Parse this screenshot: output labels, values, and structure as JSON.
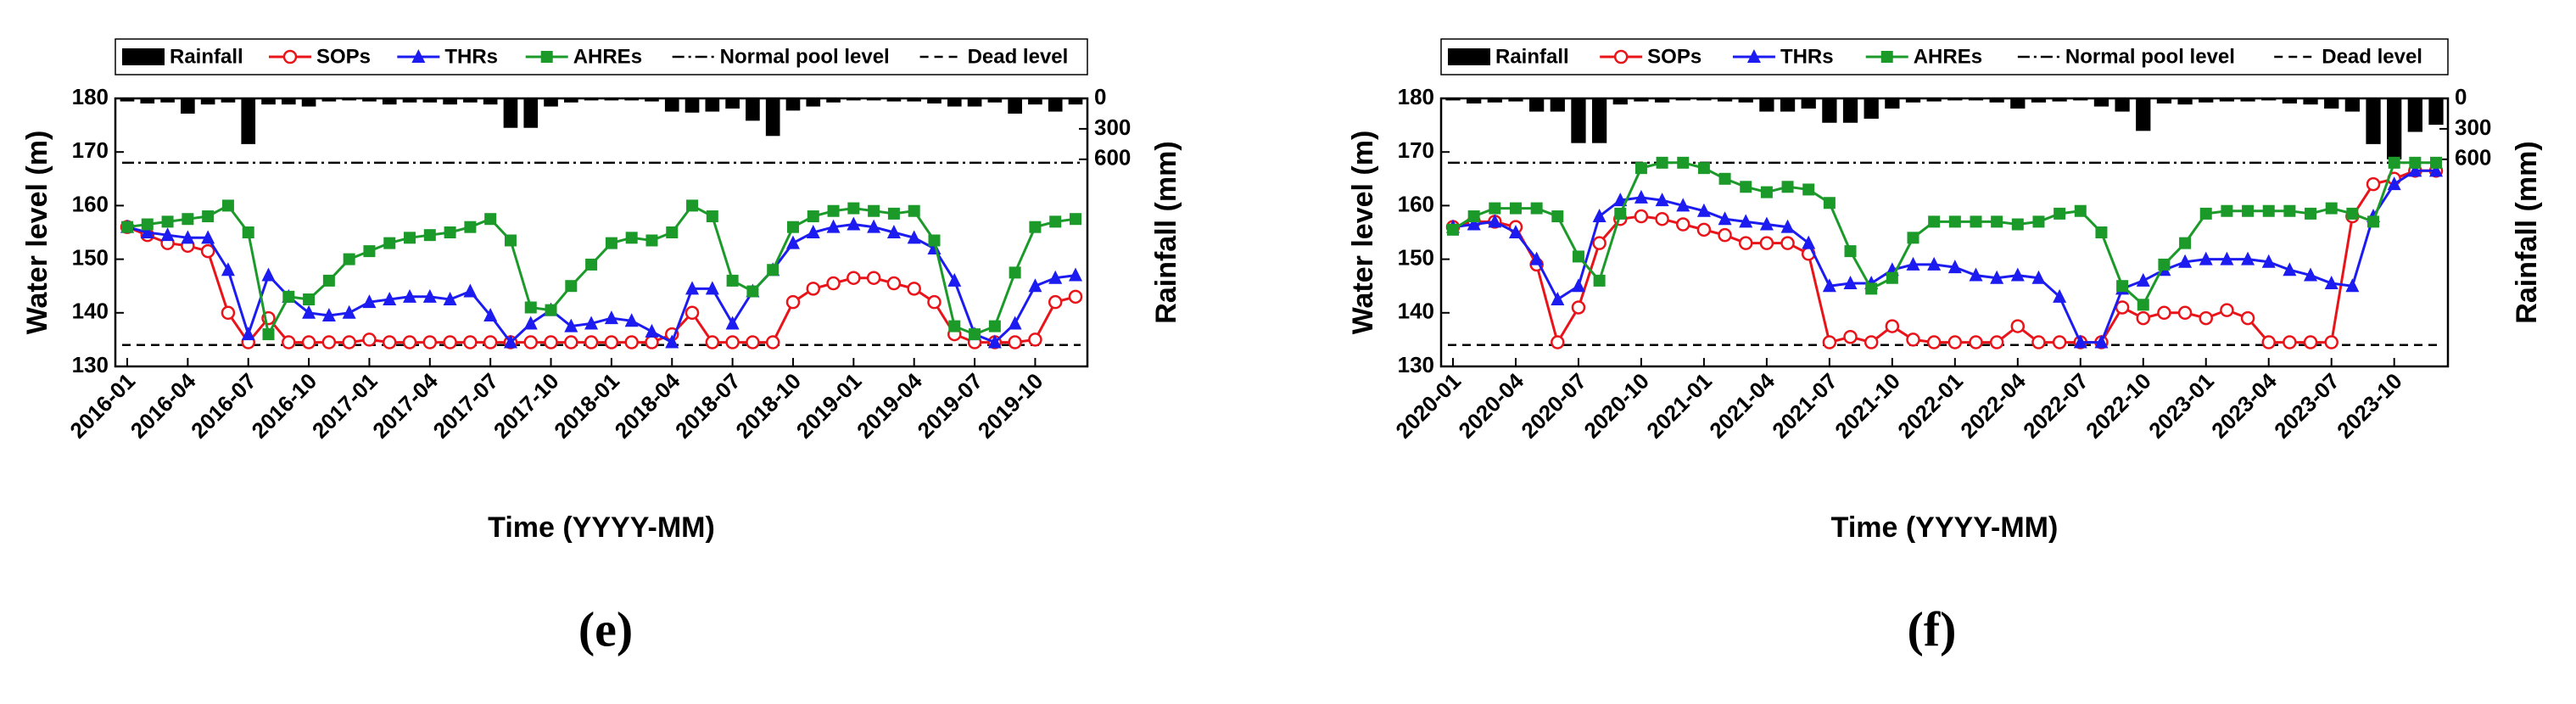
{
  "chart_data": [
    {
      "type": "line",
      "panel_label": "(e)",
      "xlabel": "Time (YYYY-MM)",
      "ylabel": "Water level (m)",
      "y2label": "Rainfall (mm)",
      "categories": [
        "2016-01",
        null,
        null,
        "2016-04",
        null,
        null,
        "2016-07",
        null,
        null,
        "2016-10",
        null,
        null,
        "2017-01",
        null,
        null,
        "2017-04",
        null,
        null,
        "2017-07",
        null,
        null,
        "2017-10",
        null,
        null,
        "2018-01",
        null,
        null,
        "2018-04",
        null,
        null,
        "2018-07",
        null,
        null,
        "2018-10",
        null,
        null,
        "2019-01",
        null,
        null,
        "2019-04",
        null,
        null,
        "2019-07",
        null,
        null,
        "2019-10",
        null,
        null
      ],
      "ylim": [
        130,
        180
      ],
      "yticks": [
        130,
        140,
        150,
        160,
        170,
        180
      ],
      "y2lim": [
        0,
        2640
      ],
      "y2ticks": [
        0,
        300,
        600
      ],
      "y2_inverted": true,
      "hlines": [
        {
          "name": "Normal pool level",
          "value": 168,
          "style": "dashdot"
        },
        {
          "name": "Dead level",
          "value": 134,
          "style": "dashed"
        }
      ],
      "series": [
        {
          "name": "Rainfall",
          "type": "bar",
          "axis": "y2",
          "color": "#000000",
          "values": [
            30,
            50,
            40,
            150,
            60,
            40,
            450,
            60,
            60,
            80,
            30,
            20,
            30,
            60,
            40,
            40,
            60,
            40,
            60,
            290,
            290,
            80,
            40,
            20,
            20,
            20,
            30,
            130,
            140,
            130,
            100,
            220,
            370,
            120,
            80,
            40,
            20,
            20,
            30,
            30,
            50,
            80,
            80,
            40,
            150,
            60,
            130,
            60
          ]
        },
        {
          "name": "SOPs",
          "type": "line",
          "marker": "circle",
          "color": "#e8141a",
          "values": [
            156,
            154.5,
            153,
            152.5,
            151.5,
            140,
            134.5,
            139,
            134.5,
            134.5,
            134.5,
            134.5,
            135,
            134.5,
            134.5,
            134.5,
            134.5,
            134.5,
            134.5,
            134.5,
            134.5,
            134.5,
            134.5,
            134.5,
            134.5,
            134.5,
            134.5,
            136,
            140,
            134.5,
            134.5,
            134.5,
            134.5,
            142,
            144.5,
            145.5,
            146.5,
            146.5,
            145.5,
            144.5,
            142,
            136,
            134.5,
            134.5,
            134.5,
            135,
            142,
            143
          ]
        },
        {
          "name": "THRs",
          "type": "line",
          "marker": "triangle",
          "color": "#1c1cf0",
          "values": [
            156,
            155,
            154.5,
            154,
            154,
            148,
            136,
            147,
            143,
            140,
            139.5,
            140,
            142,
            142.5,
            143,
            143,
            142.5,
            144,
            139.5,
            134.5,
            138,
            140.5,
            137.5,
            138,
            139,
            138.5,
            136.5,
            134.5,
            144.5,
            144.5,
            138,
            144,
            148,
            153,
            155,
            156,
            156.5,
            156,
            155,
            154,
            152,
            146,
            136,
            134.5,
            138,
            145,
            146.5,
            147
          ]
        },
        {
          "name": "AHREs",
          "type": "line",
          "marker": "square",
          "color": "#1b9a2a",
          "values": [
            156,
            156.5,
            157,
            157.5,
            158,
            160,
            155,
            136,
            143,
            142.5,
            146,
            150,
            151.5,
            153,
            154,
            154.5,
            155,
            156,
            157.5,
            153.5,
            141,
            140.5,
            145,
            149,
            153,
            154,
            153.5,
            155,
            160,
            158,
            146,
            144,
            148,
            156,
            158,
            159,
            159.5,
            159,
            158.5,
            159,
            153.5,
            137.5,
            136,
            137.5,
            147.5,
            156,
            157,
            157.5
          ]
        }
      ]
    },
    {
      "type": "line",
      "panel_label": "(f)",
      "xlabel": "Time (YYYY-MM)",
      "ylabel": "Water level (m)",
      "y2label": "Rainfall (mm)",
      "categories": [
        "2020-01",
        null,
        null,
        "2020-04",
        null,
        null,
        "2020-07",
        null,
        null,
        "2020-10",
        null,
        null,
        "2021-01",
        null,
        null,
        "2021-04",
        null,
        null,
        "2021-07",
        null,
        null,
        "2021-10",
        null,
        null,
        "2022-01",
        null,
        null,
        "2022-04",
        null,
        null,
        "2022-07",
        null,
        null,
        "2022-10",
        null,
        null,
        "2023-01",
        null,
        null,
        "2023-04",
        null,
        null,
        "2023-07",
        null,
        null,
        "2023-10",
        null,
        null
      ],
      "ylim": [
        130,
        180
      ],
      "yticks": [
        130,
        140,
        150,
        160,
        170,
        180
      ],
      "y2lim": [
        0,
        2640
      ],
      "y2ticks": [
        0,
        300,
        600
      ],
      "y2_inverted": true,
      "hlines": [
        {
          "name": "Normal pool level",
          "value": 168,
          "style": "dashdot"
        },
        {
          "name": "Dead level",
          "value": 134,
          "style": "dashed"
        }
      ],
      "series": [
        {
          "name": "Rainfall",
          "type": "bar",
          "axis": "y2",
          "color": "#000000",
          "values": [
            20,
            50,
            40,
            30,
            130,
            130,
            440,
            440,
            60,
            30,
            40,
            20,
            20,
            30,
            40,
            130,
            130,
            100,
            240,
            240,
            200,
            100,
            40,
            30,
            20,
            20,
            40,
            100,
            40,
            30,
            20,
            80,
            130,
            320,
            50,
            60,
            40,
            30,
            30,
            20,
            50,
            60,
            100,
            130,
            450,
            600,
            330,
            260
          ]
        },
        {
          "name": "SOPs",
          "type": "line",
          "marker": "circle",
          "color": "#e8141a",
          "values": [
            156,
            157,
            157,
            156,
            149,
            134.5,
            141,
            153,
            157.5,
            158,
            157.5,
            156.5,
            155.5,
            154.5,
            153,
            153,
            153,
            151,
            134.5,
            135.5,
            134.5,
            137.5,
            135,
            134.5,
            134.5,
            134.5,
            134.5,
            137.5,
            134.5,
            134.5,
            134.5,
            134.5,
            141,
            139,
            140,
            140,
            139,
            140.5,
            139,
            134.5,
            134.5,
            134.5,
            134.5,
            158,
            164,
            165,
            166.5,
            166.5
          ]
        },
        {
          "name": "THRs",
          "type": "line",
          "marker": "triangle",
          "color": "#1c1cf0",
          "values": [
            156,
            156.5,
            157,
            155,
            150,
            142.5,
            145,
            158,
            161,
            161.5,
            161,
            160,
            159,
            157.5,
            157,
            156.5,
            156,
            153,
            145,
            145.5,
            145.5,
            148,
            149,
            149,
            148.5,
            147,
            146.5,
            147,
            146.5,
            143,
            134.5,
            134.5,
            144.5,
            146,
            148,
            149.5,
            150,
            150,
            150,
            149.5,
            148,
            147,
            145.5,
            145,
            158,
            164,
            166.5,
            166.5
          ]
        },
        {
          "name": "AHREs",
          "type": "line",
          "marker": "square",
          "color": "#1b9a2a",
          "values": [
            155.5,
            158,
            159.5,
            159.5,
            159.5,
            158,
            150.5,
            146,
            158.5,
            167,
            168,
            168,
            167,
            165,
            163.5,
            162.5,
            163.5,
            163,
            160.5,
            151.5,
            144.5,
            146.5,
            154,
            157,
            157,
            157,
            157,
            156.5,
            157,
            158.5,
            159,
            155,
            145,
            141.5,
            149,
            153,
            158.5,
            159,
            159,
            159,
            159,
            158.5,
            159.5,
            158.5,
            157,
            168,
            168,
            168
          ]
        }
      ]
    }
  ]
}
